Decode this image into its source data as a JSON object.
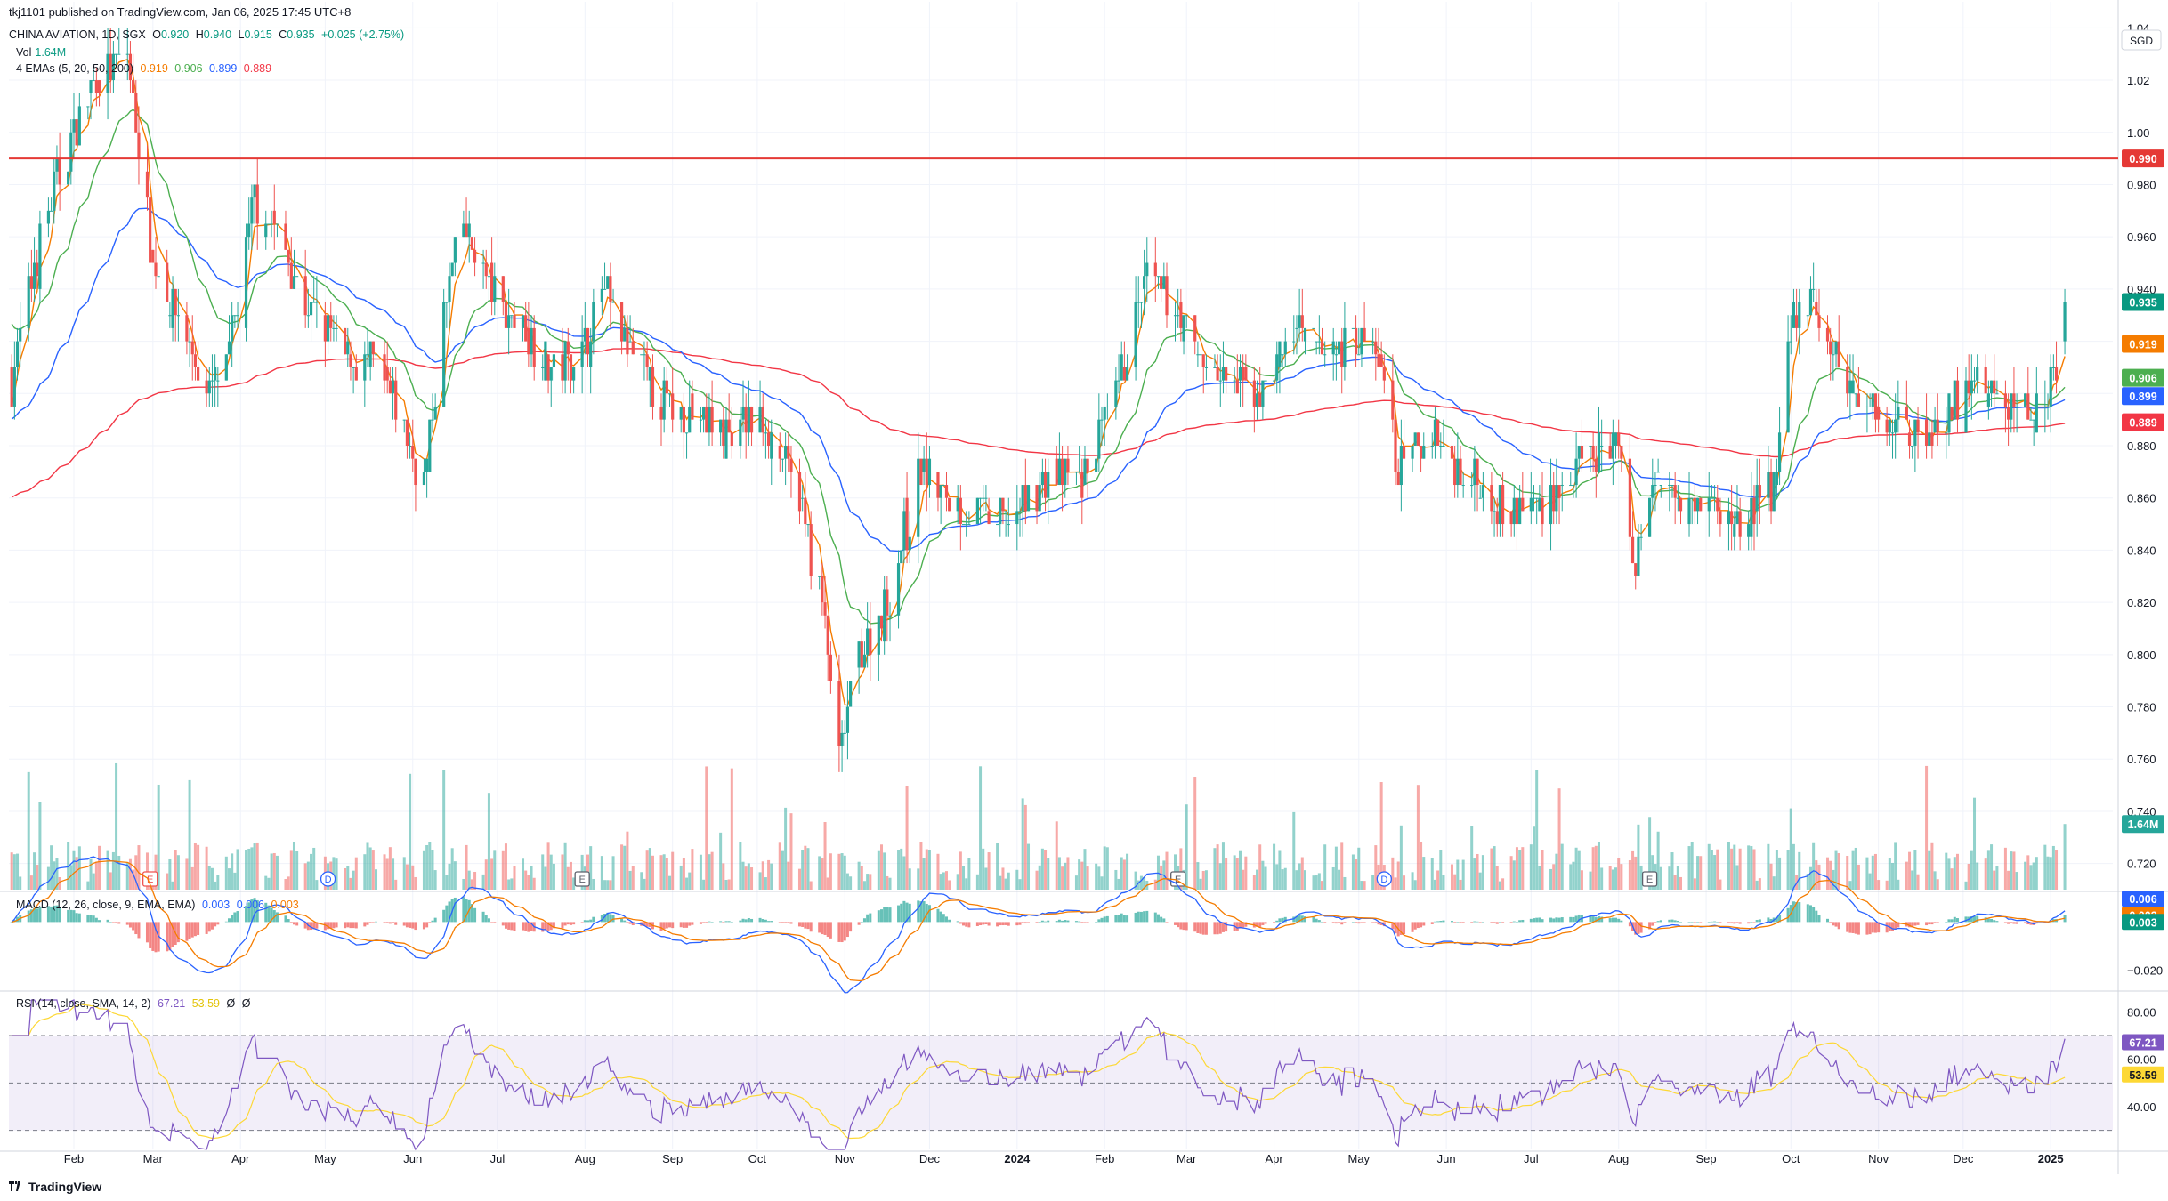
{
  "header": {
    "publisher": "tkj1101 published on TradingView.com, Jan 06, 2025 17:45 UTC+8"
  },
  "legend": {
    "symbol": "CHINA AVIATION, 1D, SGX",
    "o_label": "O",
    "o_value": "0.920",
    "h_label": "H",
    "h_value": "0.940",
    "l_label": "L",
    "l_value": "0.915",
    "c_label": "C",
    "c_value": "0.935",
    "change": "+0.025 (+2.75%)",
    "vol_label": "Vol",
    "vol_value": "1.64M",
    "ema_label": "4 EMAs (5, 20, 50, 200)",
    "ema_values": [
      "0.919",
      "0.906",
      "0.899",
      "0.889"
    ],
    "macd_label": "MACD (12, 26, close, 9, EMA, EMA)",
    "macd_values": [
      "0.003",
      "0.006",
      "0.003"
    ],
    "rsi_label": "RSI (14, close, SMA, 14, 2)",
    "rsi_values": [
      "67.21",
      "53.59",
      "Ø",
      "Ø"
    ]
  },
  "footer": {
    "brand": "TradingView"
  },
  "colors": {
    "up": "#26a69a",
    "down": "#ef5350",
    "ema5": "#f57c00",
    "ema20": "#4caf50",
    "ema50": "#2962ff",
    "ema200": "#f23645",
    "rsi": "#7e57c2",
    "rsi_ma": "#fdd835",
    "hline": "#e53935",
    "accent": "#089981"
  },
  "chart_data": [
    {
      "type": "candlestick",
      "panel": "price",
      "title": "CHINA AVIATION, 1D, SGX",
      "currency": "SGD",
      "ylim": [
        0.71,
        1.05
      ],
      "y_ticks": [
        "1.04",
        "1.02",
        "1.00",
        "0.980",
        "0.960",
        "0.940",
        "0.920",
        "0.900",
        "0.880",
        "0.860",
        "0.840",
        "0.820",
        "0.800",
        "0.780",
        "0.760",
        "0.740",
        "0.720"
      ],
      "x_ticks": [
        "Feb",
        "Mar",
        "Apr",
        "May",
        "Jun",
        "Jul",
        "Aug",
        "Sep",
        "Oct",
        "Nov",
        "Dec",
        "2024",
        "Feb",
        "Mar",
        "Apr",
        "May",
        "Jun",
        "Jul",
        "Aug",
        "Sep",
        "Oct",
        "Nov",
        "Dec",
        "2025"
      ],
      "price_anchors": [
        {
          "date": "2023-01-10",
          "close": 0.905
        },
        {
          "date": "2023-01-18",
          "close": 0.95
        },
        {
          "date": "2023-01-27",
          "close": 0.985
        },
        {
          "date": "2023-02-08",
          "close": 1.02
        },
        {
          "date": "2023-02-20",
          "close": 1.03
        },
        {
          "date": "2023-03-01",
          "close": 0.95
        },
        {
          "date": "2023-03-10",
          "close": 0.93
        },
        {
          "date": "2023-03-20",
          "close": 0.9
        },
        {
          "date": "2023-03-27",
          "close": 0.91
        },
        {
          "date": "2023-04-06",
          "close": 0.975
        },
        {
          "date": "2023-04-14",
          "close": 0.96
        },
        {
          "date": "2023-04-24",
          "close": 0.935
        },
        {
          "date": "2023-05-08",
          "close": 0.915
        },
        {
          "date": "2023-05-18",
          "close": 0.91
        },
        {
          "date": "2023-05-26",
          "close": 0.895
        },
        {
          "date": "2023-06-05",
          "close": 0.865
        },
        {
          "date": "2023-06-12",
          "close": 0.93
        },
        {
          "date": "2023-06-19",
          "close": 0.965
        },
        {
          "date": "2023-06-28",
          "close": 0.94
        },
        {
          "date": "2023-07-10",
          "close": 0.925
        },
        {
          "date": "2023-07-20",
          "close": 0.91
        },
        {
          "date": "2023-07-31",
          "close": 0.915
        },
        {
          "date": "2023-08-07",
          "close": 0.94
        },
        {
          "date": "2023-08-17",
          "close": 0.915
        },
        {
          "date": "2023-08-30",
          "close": 0.895
        },
        {
          "date": "2023-09-11",
          "close": 0.89
        },
        {
          "date": "2023-09-21",
          "close": 0.885
        },
        {
          "date": "2023-10-04",
          "close": 0.89
        },
        {
          "date": "2023-10-16",
          "close": 0.86
        },
        {
          "date": "2023-10-24",
          "close": 0.82
        },
        {
          "date": "2023-10-30",
          "close": 0.76
        },
        {
          "date": "2023-11-06",
          "close": 0.8
        },
        {
          "date": "2023-11-16",
          "close": 0.82
        },
        {
          "date": "2023-11-28",
          "close": 0.87
        },
        {
          "date": "2023-12-12",
          "close": 0.855
        },
        {
          "date": "2023-12-27",
          "close": 0.85
        },
        {
          "date": "2024-01-12",
          "close": 0.87
        },
        {
          "date": "2024-01-24",
          "close": 0.865
        },
        {
          "date": "2024-02-05",
          "close": 0.9
        },
        {
          "date": "2024-02-16",
          "close": 0.945
        },
        {
          "date": "2024-02-26",
          "close": 0.935
        },
        {
          "date": "2024-03-04",
          "close": 0.915
        },
        {
          "date": "2024-03-15",
          "close": 0.905
        },
        {
          "date": "2024-03-27",
          "close": 0.9
        },
        {
          "date": "2024-04-08",
          "close": 0.925
        },
        {
          "date": "2024-04-18",
          "close": 0.915
        },
        {
          "date": "2024-04-30",
          "close": 0.92
        },
        {
          "date": "2024-05-08",
          "close": 0.915
        },
        {
          "date": "2024-05-15",
          "close": 0.87
        },
        {
          "date": "2024-05-27",
          "close": 0.885
        },
        {
          "date": "2024-06-07",
          "close": 0.87
        },
        {
          "date": "2024-06-24",
          "close": 0.855
        },
        {
          "date": "2024-07-08",
          "close": 0.86
        },
        {
          "date": "2024-07-22",
          "close": 0.875
        },
        {
          "date": "2024-08-02",
          "close": 0.88
        },
        {
          "date": "2024-08-06",
          "close": 0.835
        },
        {
          "date": "2024-08-15",
          "close": 0.87
        },
        {
          "date": "2024-08-29",
          "close": 0.86
        },
        {
          "date": "2024-09-12",
          "close": 0.85
        },
        {
          "date": "2024-09-25",
          "close": 0.865
        },
        {
          "date": "2024-10-02",
          "close": 0.93
        },
        {
          "date": "2024-10-08",
          "close": 0.935
        },
        {
          "date": "2024-10-21",
          "close": 0.905
        },
        {
          "date": "2024-11-04",
          "close": 0.89
        },
        {
          "date": "2024-11-19",
          "close": 0.885
        },
        {
          "date": "2024-12-05",
          "close": 0.905
        },
        {
          "date": "2024-12-16",
          "close": 0.895
        },
        {
          "date": "2024-12-26",
          "close": 0.895
        },
        {
          "date": "2025-01-03",
          "close": 0.91
        },
        {
          "date": "2025-01-06",
          "close": 0.935
        }
      ],
      "last_bar": {
        "date": "2025-01-06",
        "open": 0.92,
        "high": 0.94,
        "low": 0.915,
        "close": 0.935
      },
      "horizontal_line": 0.99,
      "ema": [
        {
          "name": "EMA 5",
          "last": 0.919
        },
        {
          "name": "EMA 20",
          "last": 0.906
        },
        {
          "name": "EMA 50",
          "last": 0.899
        },
        {
          "name": "EMA 200",
          "last": 0.889
        }
      ],
      "price_labels": [
        "0.990",
        "0.935",
        "0.919",
        "0.906",
        "0.899",
        "0.889"
      ],
      "volume_label": "1.64M",
      "event_markers": [
        {
          "date": "2023-02-28",
          "label": "E"
        },
        {
          "date": "2023-05-02",
          "label": "D"
        },
        {
          "date": "2023-07-31",
          "label": "E"
        },
        {
          "date": "2024-02-27",
          "label": "E"
        },
        {
          "date": "2024-05-10",
          "label": "D"
        },
        {
          "date": "2024-08-12",
          "label": "E"
        }
      ]
    },
    {
      "type": "line",
      "panel": "macd",
      "title": "MACD (12, 26, close, 9, EMA, EMA)",
      "ylim": [
        -0.028,
        0.012
      ],
      "y_ticks": [
        "−0.020"
      ],
      "series": [
        {
          "name": "MACD",
          "last": 0.006
        },
        {
          "name": "Signal",
          "last": 0.003
        },
        {
          "name": "Histogram",
          "last": 0.003
        }
      ],
      "price_labels": [
        "0.006",
        "0.003",
        "0.003"
      ]
    },
    {
      "type": "line",
      "panel": "rsi",
      "title": "RSI (14, close, SMA, 14, 2)",
      "ylim": [
        22,
        88
      ],
      "y_ticks": [
        "80.00",
        "60.00",
        "40.00"
      ],
      "band": [
        30,
        70
      ],
      "series": [
        {
          "name": "RSI",
          "last": 67.21
        },
        {
          "name": "RSI-based MA",
          "last": 53.59
        }
      ],
      "price_labels": [
        "67.21",
        "53.59"
      ]
    }
  ]
}
